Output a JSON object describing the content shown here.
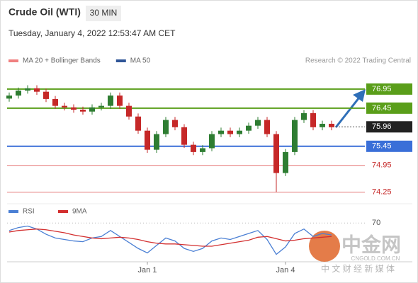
{
  "header": {
    "title": "Crude Oil (WTI)",
    "timeframe": "30 MIN",
    "datetime": "Tuesday, January 4, 2022 12:53:47 AM CET",
    "legend": [
      {
        "name": "MA 20 + Bollinger Bands",
        "color": "#f08080"
      },
      {
        "name": "MA 50",
        "color": "#2f5597"
      }
    ],
    "credit": "Research © 2022 Trading Central"
  },
  "chart_data": {
    "type": "candlestick",
    "open": [
      76.7,
      76.78,
      76.91,
      76.97,
      76.88,
      76.69,
      76.51,
      76.47,
      76.41,
      76.36,
      76.47,
      76.51,
      76.78,
      76.51,
      76.23,
      75.86,
      75.36,
      75.77,
      76.14,
      75.95,
      75.49,
      75.3,
      75.4,
      75.77,
      75.86,
      75.77,
      75.86,
      75.99,
      76.14,
      75.77,
      74.75,
      75.3,
      76.14,
      76.32,
      75.95,
      76.04
    ],
    "high": [
      76.86,
      76.99,
      77.05,
      77.05,
      76.96,
      76.77,
      76.59,
      76.55,
      76.49,
      76.55,
      76.59,
      76.86,
      76.86,
      76.59,
      76.31,
      75.94,
      75.85,
      76.22,
      76.22,
      76.03,
      75.57,
      75.48,
      75.85,
      75.94,
      75.94,
      75.94,
      76.07,
      76.22,
      76.22,
      75.85,
      75.38,
      76.22,
      76.4,
      76.4,
      76.12,
      76.12
    ],
    "low": [
      76.62,
      76.7,
      76.83,
      76.8,
      76.61,
      76.43,
      76.39,
      76.33,
      76.28,
      76.28,
      76.39,
      76.43,
      76.43,
      76.15,
      75.78,
      75.28,
      75.28,
      75.69,
      75.87,
      75.41,
      75.22,
      75.22,
      75.32,
      75.69,
      75.69,
      75.69,
      75.78,
      75.91,
      75.69,
      74.25,
      74.67,
      75.22,
      76.06,
      75.87,
      75.87,
      75.87
    ],
    "close": [
      76.78,
      76.91,
      76.97,
      76.88,
      76.69,
      76.51,
      76.47,
      76.41,
      76.36,
      76.47,
      76.51,
      76.78,
      76.51,
      76.23,
      75.86,
      75.36,
      75.77,
      76.14,
      75.95,
      75.49,
      75.3,
      75.4,
      75.77,
      75.86,
      75.77,
      75.86,
      75.99,
      76.14,
      75.77,
      74.75,
      75.3,
      76.14,
      76.32,
      75.95,
      76.04,
      75.95
    ],
    "up_color": "#2e7d32",
    "down_color": "#c62828",
    "ylim": [
      74.0,
      77.43
    ],
    "levels": [
      {
        "value": 76.95,
        "color": "#5a9e1a",
        "style": "box"
      },
      {
        "value": 76.45,
        "color": "#5a9e1a",
        "style": "box"
      },
      {
        "value": 75.96,
        "color": "#222222",
        "style": "dashed"
      },
      {
        "value": 75.45,
        "color": "#3a6fd8",
        "style": "box"
      },
      {
        "value": 74.95,
        "color": "#e57373",
        "style": "text"
      },
      {
        "value": 74.25,
        "color": "#e57373",
        "style": "text"
      }
    ],
    "x_labels": [
      {
        "index": 15,
        "label": "Jan 1"
      },
      {
        "index": 30,
        "label": "Jan 4"
      }
    ],
    "rsi": {
      "ylim": [
        20,
        75
      ],
      "yticks": [
        70
      ],
      "series": [
        {
          "name": "RSI",
          "color": "#4a7fd4",
          "values": [
            60,
            64,
            66,
            62,
            55,
            50,
            48,
            46,
            45,
            50,
            52,
            60,
            52,
            44,
            36,
            30,
            40,
            50,
            46,
            36,
            32,
            36,
            46,
            50,
            48,
            52,
            56,
            60,
            48,
            28,
            38,
            56,
            62,
            52,
            56,
            54
          ]
        },
        {
          "name": "9MA",
          "color": "#d32f2f",
          "values": [
            58,
            60,
            61,
            62,
            61,
            59,
            57,
            54,
            52,
            50,
            49,
            50,
            51,
            50,
            48,
            45,
            43,
            42,
            42,
            41,
            40,
            39,
            39,
            41,
            43,
            45,
            47,
            51,
            52,
            49,
            46,
            47,
            49,
            50,
            51,
            52
          ]
        }
      ]
    }
  },
  "watermark": {
    "name": "中金网",
    "site": "CNGOLD.COM.CN",
    "slogan": "中 文 财 经 新 媒 体"
  }
}
